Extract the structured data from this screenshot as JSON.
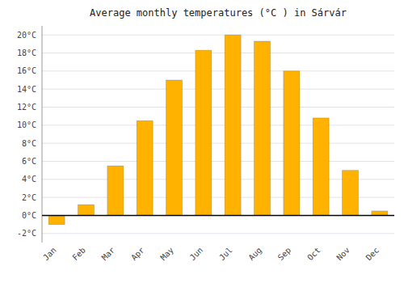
{
  "chart_data": {
    "type": "bar",
    "title": "Average monthly temperatures (°C ) in Sárvár",
    "categories": [
      "Jan",
      "Feb",
      "Mar",
      "Apr",
      "May",
      "Jun",
      "Jul",
      "Aug",
      "Sep",
      "Oct",
      "Nov",
      "Dec"
    ],
    "values": [
      -1.0,
      1.2,
      5.5,
      10.5,
      15.0,
      18.3,
      20.0,
      19.3,
      16.0,
      10.8,
      5.0,
      0.5
    ],
    "color": "#FFB300",
    "ylim": [
      -3,
      21
    ],
    "yticks": [
      {
        "value": -2,
        "label": "-2°C"
      },
      {
        "value": 0,
        "label": "0°C"
      },
      {
        "value": 2,
        "label": "2°C"
      },
      {
        "value": 4,
        "label": "4°C"
      },
      {
        "value": 6,
        "label": "6°C"
      },
      {
        "value": 8,
        "label": "8°C"
      },
      {
        "value": 10,
        "label": "10°C"
      },
      {
        "value": 12,
        "label": "12°C"
      },
      {
        "value": 14,
        "label": "14°C"
      },
      {
        "value": 16,
        "label": "16°C"
      },
      {
        "value": 18,
        "label": "18°C"
      },
      {
        "value": 20,
        "label": "20°C"
      }
    ],
    "grid": true
  }
}
